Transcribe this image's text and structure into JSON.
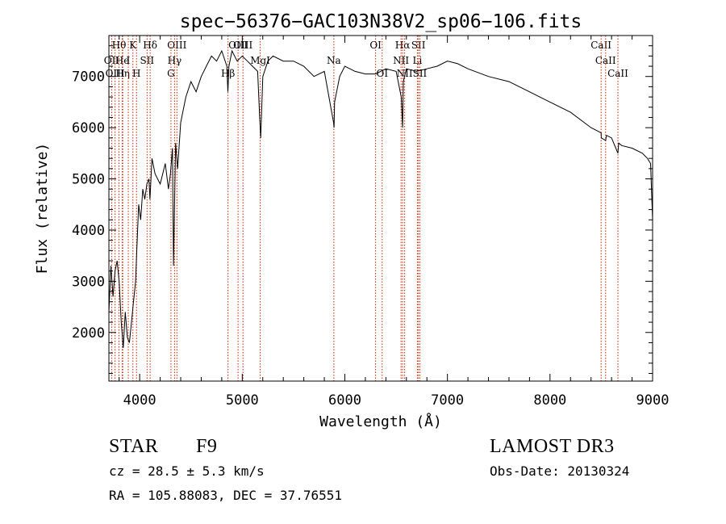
{
  "chart_data": {
    "type": "line",
    "title": "spec−56376−GAC103N38V2_sp06−106.fits",
    "xlabel": "Wavelength (Å)",
    "ylabel": "Flux (relative)",
    "xlim": [
      3700,
      9000
    ],
    "ylim": [
      1050,
      7800
    ],
    "x_ticks": [
      4000,
      5000,
      6000,
      7000,
      8000,
      9000
    ],
    "x_tick_labels": [
      "4000",
      "5000",
      "6000",
      "7000",
      "8000",
      "9000"
    ],
    "y_ticks": [
      2000,
      3000,
      4000,
      5000,
      6000,
      7000
    ],
    "y_tick_labels": [
      "2000",
      "3000",
      "4000",
      "5000",
      "6000",
      "7000"
    ],
    "series": [
      {
        "name": "spectrum",
        "x": [
          3700,
          3720,
          3740,
          3760,
          3780,
          3800,
          3820,
          3840,
          3860,
          3880,
          3900,
          3920,
          3940,
          3960,
          3970,
          3990,
          4010,
          4030,
          4050,
          4070,
          4090,
          4100,
          4120,
          4150,
          4200,
          4250,
          4280,
          4300,
          4320,
          4330,
          4340,
          4350,
          4370,
          4400,
          4450,
          4500,
          4550,
          4600,
          4650,
          4700,
          4750,
          4800,
          4850,
          4860,
          4870,
          4900,
          4950,
          5000,
          5050,
          5100,
          5150,
          5170,
          5180,
          5200,
          5250,
          5300,
          5400,
          5500,
          5600,
          5700,
          5800,
          5890,
          5895,
          5900,
          5950,
          6000,
          6100,
          6200,
          6300,
          6400,
          6500,
          6550,
          6563,
          6570,
          6600,
          6700,
          6800,
          6900,
          7000,
          7100,
          7200,
          7400,
          7600,
          7800,
          8000,
          8200,
          8400,
          8498,
          8500,
          8542,
          8550,
          8600,
          8662,
          8670,
          8700,
          8800,
          8900,
          8950,
          8980,
          9000
        ],
        "y": [
          2400,
          3300,
          2700,
          3200,
          3400,
          3000,
          2200,
          1700,
          2400,
          1900,
          1800,
          2200,
          2600,
          3000,
          3500,
          4500,
          4200,
          4800,
          4600,
          4900,
          5000,
          4600,
          5400,
          5100,
          4900,
          5300,
          4800,
          5100,
          5600,
          3300,
          4500,
          5700,
          5200,
          6100,
          6600,
          6900,
          6700,
          7000,
          7200,
          7400,
          7300,
          7500,
          7200,
          6700,
          7200,
          7500,
          7300,
          7400,
          7300,
          7200,
          7100,
          6200,
          5800,
          7000,
          7300,
          7400,
          7300,
          7300,
          7200,
          7000,
          7100,
          6100,
          6000,
          6500,
          7000,
          7200,
          7100,
          7050,
          7050,
          7150,
          7100,
          6600,
          6000,
          6900,
          7150,
          7100,
          7150,
          7200,
          7300,
          7250,
          7150,
          7000,
          6900,
          6700,
          6500,
          6300,
          6000,
          5900,
          5800,
          5750,
          5850,
          5800,
          5500,
          5700,
          5650,
          5600,
          5500,
          5400,
          5300,
          4200
        ]
      }
    ],
    "spectral_lines": [
      {
        "label": "Hθ",
        "wavelength": 3798,
        "row": 0
      },
      {
        "label": "OII",
        "wavelength": 3727,
        "row": 1
      },
      {
        "label": "OIII",
        "wavelength": 3760,
        "row": 2
      },
      {
        "label": "He",
        "wavelength": 3830,
        "row": 1
      },
      {
        "label": "Hη",
        "wavelength": 3835,
        "row": 2
      },
      {
        "label": "K",
        "wavelength": 3934,
        "row": 0
      },
      {
        "label": "H",
        "wavelength": 3969,
        "row": 2
      },
      {
        "label": "I",
        "wavelength": 3889,
        "row": 1
      },
      {
        "label": "SII",
        "wavelength": 4072,
        "row": 1
      },
      {
        "label": "Hδ",
        "wavelength": 4102,
        "row": 0
      },
      {
        "label": "OIII",
        "wavelength": 4363,
        "row": 0
      },
      {
        "label": "Hγ",
        "wavelength": 4340,
        "row": 1
      },
      {
        "label": "G",
        "wavelength": 4305,
        "row": 2
      },
      {
        "label": "Hβ",
        "wavelength": 4861,
        "row": 2
      },
      {
        "label": "OIII",
        "wavelength": 4959,
        "row": 0
      },
      {
        "label": "OIII",
        "wavelength": 5007,
        "row": 0
      },
      {
        "label": "MgI",
        "wavelength": 5175,
        "row": 1
      },
      {
        "label": "Na",
        "wavelength": 5893,
        "row": 1
      },
      {
        "label": "OI",
        "wavelength": 6300,
        "row": 0
      },
      {
        "label": "OI",
        "wavelength": 6364,
        "row": 2
      },
      {
        "label": "Hα",
        "wavelength": 6563,
        "row": 0
      },
      {
        "label": "NII",
        "wavelength": 6548,
        "row": 1
      },
      {
        "label": "NII",
        "wavelength": 6583,
        "row": 2
      },
      {
        "label": "SII",
        "wavelength": 6717,
        "row": 0
      },
      {
        "label": "Li",
        "wavelength": 6707,
        "row": 1
      },
      {
        "label": "SII",
        "wavelength": 6731,
        "row": 2
      },
      {
        "label": "CaII",
        "wavelength": 8498,
        "row": 0
      },
      {
        "label": "CaII",
        "wavelength": 8542,
        "row": 1
      },
      {
        "label": "CaII",
        "wavelength": 8662,
        "row": 2
      }
    ],
    "colors": {
      "line": "#000000",
      "marker": "#cc2200",
      "axes": "#000000"
    }
  },
  "info": {
    "class_label": "STAR",
    "subclass": "F9",
    "survey": "LAMOST DR3",
    "cz": "cz = 28.5 ± 5.3 km/s",
    "obs_date": "Obs-Date: 20130324",
    "coords": "RA = 105.88083, DEC =  37.76551"
  }
}
